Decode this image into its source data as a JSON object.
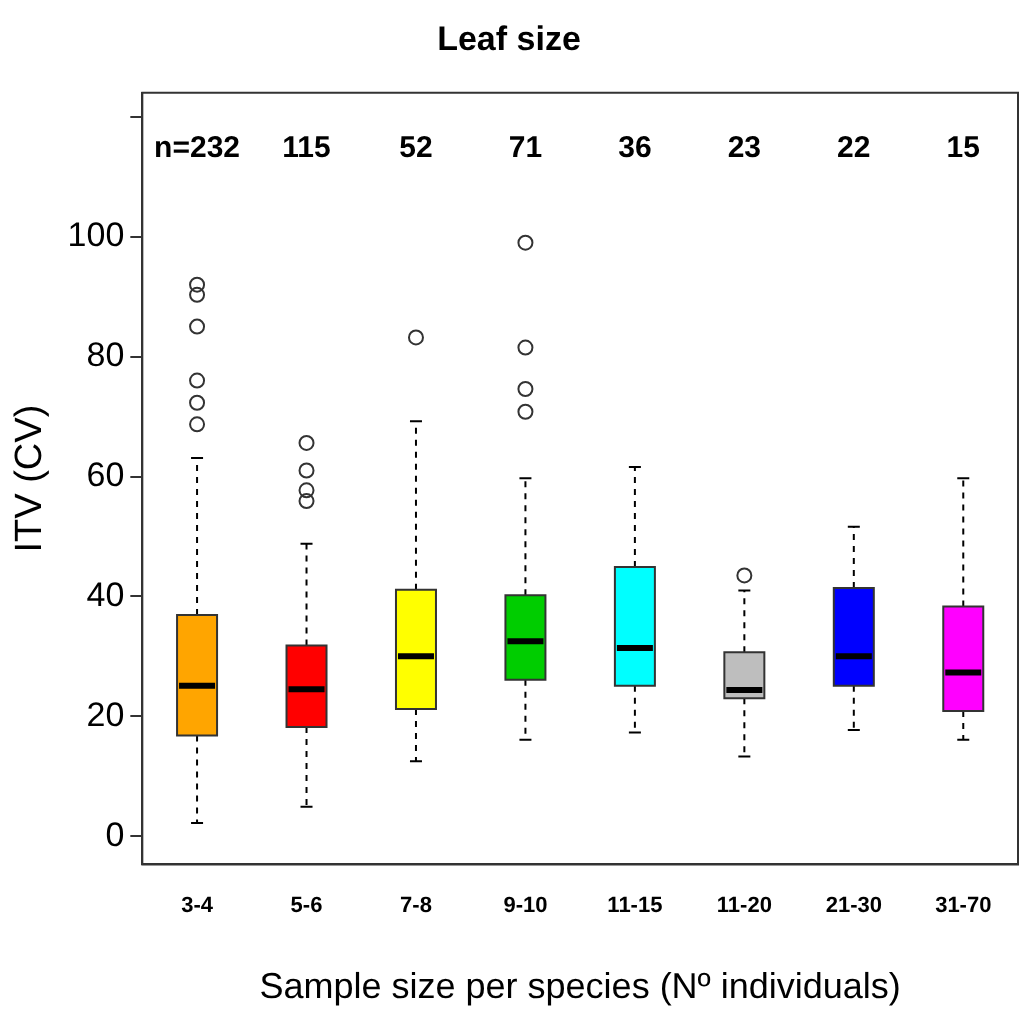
{
  "chart_data": {
    "type": "box",
    "title": "Leaf size",
    "xlabel": "Sample size per species (Nº individuals)",
    "ylabel": "ITV (CV)",
    "categories": [
      "3-4",
      "5-6",
      "7-8",
      "9-10",
      "11-15",
      "11-20",
      "21-30",
      "31-70"
    ],
    "colors": [
      "#ffa500",
      "#ff0000",
      "#ffff00",
      "#00cd00",
      "#00ffff",
      "#bebebe",
      "#0000ff",
      "#ff00ff"
    ],
    "boxes": [
      {
        "low": 2.2,
        "q1": 16.8,
        "median": 25.1,
        "q3": 36.9,
        "high": 63.1,
        "outliers": [
          92,
          90.3,
          85,
          76,
          72.3,
          68.7
        ]
      },
      {
        "low": 4.9,
        "q1": 18.2,
        "median": 24.5,
        "q3": 31.8,
        "high": 48.8,
        "outliers": [
          65.6,
          61,
          57.7,
          55.9
        ]
      },
      {
        "low": 12.5,
        "q1": 21.2,
        "median": 30,
        "q3": 41.1,
        "high": 69.2,
        "outliers": [
          83.2
        ]
      },
      {
        "low": 16.1,
        "q1": 26.1,
        "median": 32.5,
        "q3": 40.2,
        "high": 59.7,
        "outliers": [
          99,
          81.5,
          74.6,
          70.8
        ]
      },
      {
        "low": 17.3,
        "q1": 25.1,
        "median": 31.4,
        "q3": 44.9,
        "high": 61.6
      },
      {
        "low": 13.3,
        "q1": 23,
        "median": 24.4,
        "q3": 30.7,
        "high": 41,
        "outliers": [
          43.5
        ]
      },
      {
        "low": 17.7,
        "q1": 25.1,
        "median": 30,
        "q3": 41.4,
        "high": 51.6
      },
      {
        "low": 16.1,
        "q1": 20.9,
        "median": 27.3,
        "q3": 38.3,
        "high": 59.7
      }
    ],
    "annotations": [
      "n=232",
      "115",
      "52",
      "71",
      "36",
      "23",
      "22",
      "15"
    ],
    "ylim": [
      -4.7,
      124
    ],
    "yticks": [
      0,
      20,
      40,
      60,
      80,
      100,
      {
        "value": 120,
        "label": null
      }
    ],
    "grid": false,
    "legend": false
  }
}
